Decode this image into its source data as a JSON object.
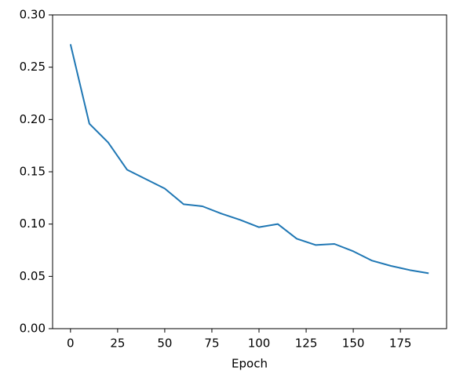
{
  "chart_data": {
    "type": "line",
    "xlabel": "Epoch",
    "x": [
      0,
      10,
      20,
      30,
      40,
      50,
      60,
      70,
      80,
      90,
      100,
      110,
      120,
      130,
      140,
      150,
      160,
      170,
      180,
      190
    ],
    "series": [
      {
        "color": "#1f77b4",
        "values": [
          0.272,
          0.196,
          0.178,
          0.152,
          0.143,
          0.134,
          0.119,
          0.117,
          0.11,
          0.104,
          0.097,
          0.1,
          0.086,
          0.08,
          0.081,
          0.074,
          0.065,
          0.06,
          0.056,
          0.053
        ]
      }
    ],
    "xlim": [
      -9.5,
      199.5
    ],
    "xticks": [
      0,
      25,
      50,
      75,
      100,
      125,
      150,
      175
    ],
    "ylim": [
      0,
      0.3
    ],
    "yticks": [
      {
        "value": 0,
        "label": "0.00"
      },
      {
        "value": 0.05,
        "label": "0.05"
      },
      {
        "value": 0.1,
        "label": "0.10"
      },
      {
        "value": 0.15,
        "label": "0.15"
      },
      {
        "value": 0.2,
        "label": "0.20"
      },
      {
        "value": 0.25,
        "label": "0.25"
      },
      {
        "value": 0.3,
        "label": "0.30"
      }
    ]
  }
}
